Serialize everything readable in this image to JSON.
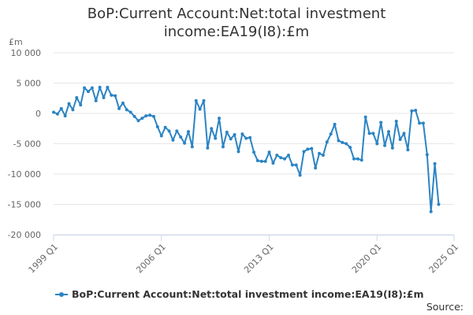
{
  "chart_data": {
    "type": "line",
    "title": "BoP:Current Account:Net:total investment income:EA19(I8):£m",
    "ylabel": "£m",
    "xlabel": "",
    "ylim": [
      -20000,
      10000
    ],
    "yticks": [
      10000,
      5000,
      0,
      -5000,
      -10000,
      -15000,
      -20000
    ],
    "ytick_labels": [
      "10 000",
      "5 000",
      "0",
      "-5 000",
      "-10 000",
      "-15 000",
      "-20 000"
    ],
    "xticks": [
      "1999 Q1",
      "2006 Q1",
      "2013 Q1",
      "2020 Q1",
      "2025 Q1"
    ],
    "xtick_positions": [
      0,
      28,
      56,
      84,
      104
    ],
    "grid": true,
    "legend_position": "bottom",
    "series": [
      {
        "name": "BoP:Current Account:Net:total investment income:EA19(I8):£m",
        "color": "#2b84c4",
        "start": "1999 Q1",
        "values": [
          200,
          -100,
          800,
          -400,
          1600,
          600,
          2600,
          1400,
          4200,
          3600,
          4200,
          2100,
          4300,
          2600,
          4300,
          3000,
          2900,
          800,
          1700,
          600,
          200,
          -500,
          -1200,
          -800,
          -400,
          -300,
          -500,
          -2200,
          -3700,
          -2300,
          -2900,
          -4400,
          -2900,
          -3900,
          -4900,
          -3000,
          -5500,
          2100,
          700,
          2100,
          -5700,
          -2500,
          -4100,
          -800,
          -5500,
          -3100,
          -4200,
          -3500,
          -6300,
          -3400,
          -4100,
          -4000,
          -6400,
          -7800,
          -7900,
          -7900,
          -6400,
          -8200,
          -6900,
          -7300,
          -7500,
          -6900,
          -8500,
          -8500,
          -10200,
          -6300,
          -5900,
          -5800,
          -9000,
          -6600,
          -6900,
          -4700,
          -3400,
          -1800,
          -4500,
          -4800,
          -5000,
          -5600,
          -7500,
          -7500,
          -7700,
          -600,
          -3300,
          -3300,
          -5000,
          -1500,
          -5300,
          -3000,
          -5700,
          -1300,
          -4300,
          -3300,
          -6000,
          400,
          500,
          -1600,
          -1600,
          -6800,
          -16200,
          -8300,
          -15000
        ]
      }
    ],
    "legend_label": "BoP:Current Account:Net:total investment income:EA19(I8):£m",
    "source_label": "Source:"
  }
}
